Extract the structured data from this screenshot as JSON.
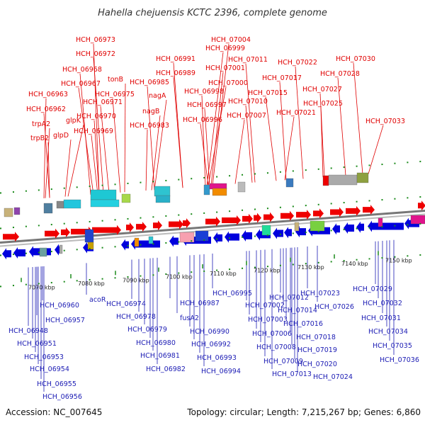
{
  "title": "Hahella chejuensis KCTC 2396, complete genome",
  "footer": {
    "accession": "Accession: NC_007645",
    "summary": "Topology: circular; Length: 7,215,267 bp; Genes: 6,860"
  },
  "colors": {
    "forward": "#ee0000",
    "reverse": "#0000dd",
    "backbone": "#777777",
    "tick": "#1a8a1a",
    "label_forward": "#e00000",
    "label_reverse": "#1c1cb4"
  },
  "scale": {
    "unit": "kbp",
    "ticks": [
      {
        "label": "7070 kbp"
      },
      {
        "label": "7080 kbp"
      },
      {
        "label": "7090 kbp"
      },
      {
        "label": "7100 kbp"
      },
      {
        "label": "7110 kbp"
      },
      {
        "label": "7120 kbp"
      },
      {
        "label": "7130 kbp"
      },
      {
        "label": "7140 kbp"
      },
      {
        "label": "7150 kbp"
      }
    ]
  },
  "forward_labels": [
    "HCH_06973",
    "HCH_06972",
    "HCH_06968",
    "HCH_06967",
    "tonB",
    "HCH_06975",
    "HCH_06971",
    "HCH_06963",
    "HCH_06962",
    "HCH_06970",
    "glpK",
    "trpA2",
    "HCH_06969",
    "glpD",
    "trpB2",
    "HCH_06985",
    "nagA",
    "nagB",
    "HCH_06983",
    "HCH_06991",
    "HCH_06989",
    "HCH_07004",
    "HCH_06999",
    "HCH_07001",
    "HCH_07011",
    "HCH_07000",
    "HCH_06998",
    "HCH_07010",
    "HCH_06997",
    "HCH_07007",
    "HCH_06996",
    "HCH_07022",
    "HCH_07030",
    "HCH_07017",
    "HCH_07028",
    "HCH_07015",
    "HCH_07027",
    "HCH_07025",
    "HCH_07021",
    "HCH_07033"
  ],
  "reverse_labels": [
    "HCH_06960",
    "acoR",
    "HCH_06957",
    "HCH_06948",
    "HCH_06951",
    "HCH_06953",
    "HCH_06954",
    "HCH_06955",
    "HCH_06956",
    "HCH_06974",
    "HCH_06978",
    "HCH_06979",
    "HCH_06980",
    "HCH_06981",
    "HCH_06982",
    "HCH_06987",
    "fusA2",
    "HCH_06990",
    "HCH_06992",
    "HCH_06993",
    "HCH_06994",
    "HCH_06995",
    "HCH_07002",
    "HCH_07003",
    "HCH_07006",
    "HCH_07008",
    "HCH_07009",
    "HCH_07012",
    "HCH_07014",
    "HCH_07016",
    "HCH_07018",
    "HCH_07019",
    "HCH_07013",
    "HCH_07020",
    "HCH_07023",
    "HCH_07026",
    "HCH_07024",
    "HCH_07029",
    "HCH_07032",
    "HCH_07031",
    "HCH_07034",
    "HCH_07035",
    "HCH_07036"
  ]
}
